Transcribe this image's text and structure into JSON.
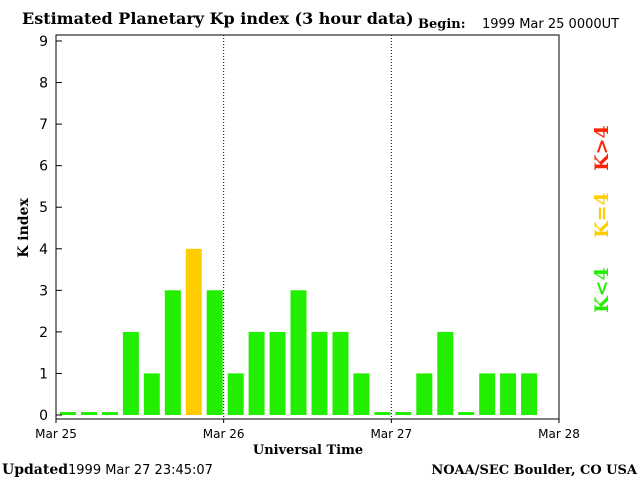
{
  "chart_data": {
    "type": "bar",
    "title": "Estimated Planetary Kp index (3 hour data)",
    "begin_label": "Begin:",
    "begin_value": "1999 Mar 25 0000UT",
    "xlabel": "Universal Time",
    "ylabel": "K index",
    "ylim": [
      0,
      9
    ],
    "yticks": [
      0,
      1,
      2,
      3,
      4,
      5,
      6,
      7,
      8,
      9
    ],
    "xticks": [
      "Mar 25",
      "Mar 26",
      "Mar 27",
      "Mar 28"
    ],
    "interval_hours": 3,
    "values": [
      0,
      0,
      0,
      2,
      1,
      3,
      4,
      3,
      1,
      2,
      2,
      3,
      2,
      2,
      1,
      0,
      0,
      1,
      2,
      0,
      1,
      1,
      1
    ],
    "legend": [
      {
        "label": "K<4",
        "color": "#22ee00"
      },
      {
        "label": "K=4",
        "color": "#ffcc00"
      },
      {
        "label": "K>4",
        "color": "#ff2200"
      }
    ],
    "colors": {
      "low": "#22ee00",
      "eq4": "#ffcc00",
      "high": "#ff2200"
    },
    "day_separators": true
  },
  "footer": {
    "updated_label": "Updated",
    "updated_value": "1999 Mar 27 23:45:07",
    "credit": "NOAA/SEC Boulder, CO USA"
  }
}
